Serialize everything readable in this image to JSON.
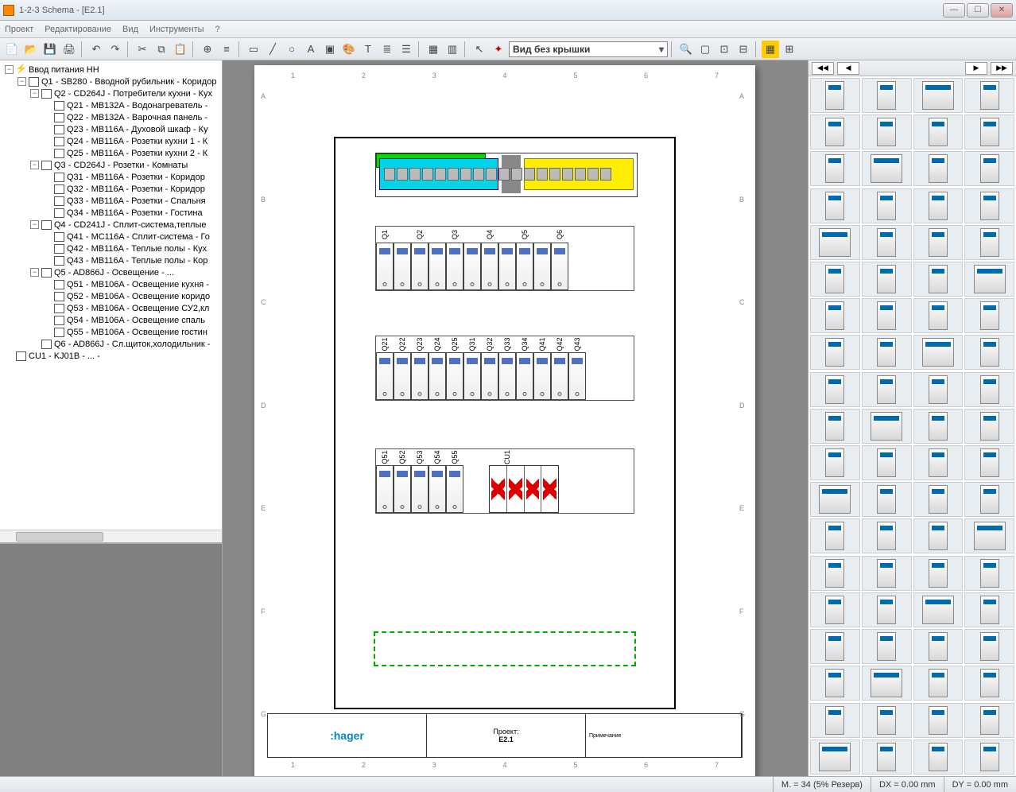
{
  "window": {
    "title": "1-2-3 Schema - [E2.1]"
  },
  "menu": {
    "items": [
      "Проект",
      "Редактирование",
      "Вид",
      "Инструменты",
      "?"
    ]
  },
  "toolbar": {
    "view_combo": "Вид без крышки"
  },
  "tree": {
    "root": "Ввод питания НН",
    "nodes": [
      {
        "indent": 0,
        "exp": "-",
        "ico": "bolt",
        "label": "Ввод питания НН"
      },
      {
        "indent": 1,
        "exp": "-",
        "ico": "box",
        "label": "Q1 - SB280 - Вводной рубильник - Коридор"
      },
      {
        "indent": 2,
        "exp": "-",
        "ico": "box",
        "label": "Q2 - CD264J - Потребители кухни - Кух"
      },
      {
        "indent": 3,
        "exp": "",
        "ico": "box",
        "label": "Q21 - MB132A - Водонагреватель - "
      },
      {
        "indent": 3,
        "exp": "",
        "ico": "box",
        "label": "Q22 - MB132A - Варочная панель - "
      },
      {
        "indent": 3,
        "exp": "",
        "ico": "box",
        "label": "Q23 - MB116A - Духовой шкаф - Ку"
      },
      {
        "indent": 3,
        "exp": "",
        "ico": "box",
        "label": "Q24 - MB116A - Розетки кухни 1 - К"
      },
      {
        "indent": 3,
        "exp": "",
        "ico": "box",
        "label": "Q25 - MB116A - Розетки кухни 2 - К"
      },
      {
        "indent": 2,
        "exp": "-",
        "ico": "box",
        "label": "Q3 - CD264J - Розетки - Комнаты"
      },
      {
        "indent": 3,
        "exp": "",
        "ico": "box",
        "label": "Q31 - MB116A - Розетки - Коридор"
      },
      {
        "indent": 3,
        "exp": "",
        "ico": "box",
        "label": "Q32 - MB116A - Розетки - Коридор"
      },
      {
        "indent": 3,
        "exp": "",
        "ico": "box",
        "label": "Q33 - MB116A - Розетки - Спальня"
      },
      {
        "indent": 3,
        "exp": "",
        "ico": "box",
        "label": "Q34 - MB116A - Розетки - Гостина"
      },
      {
        "indent": 2,
        "exp": "-",
        "ico": "box",
        "label": "Q4 - CD241J - Сплит-система,теплые "
      },
      {
        "indent": 3,
        "exp": "",
        "ico": "box",
        "label": "Q41 - MC116A - Сплит-система - Го"
      },
      {
        "indent": 3,
        "exp": "",
        "ico": "box",
        "label": "Q42 - MB116A - Теплые полы - Кух"
      },
      {
        "indent": 3,
        "exp": "",
        "ico": "box",
        "label": "Q43 - MB116A - Теплые полы - Кор"
      },
      {
        "indent": 2,
        "exp": "-",
        "ico": "box",
        "label": "Q5 - AD866J - Освещение - ..."
      },
      {
        "indent": 3,
        "exp": "",
        "ico": "box",
        "label": "Q51 - MB106A - Освещение кухня - "
      },
      {
        "indent": 3,
        "exp": "",
        "ico": "box",
        "label": "Q52 - MB106A - Освещение коридо"
      },
      {
        "indent": 3,
        "exp": "",
        "ico": "box",
        "label": "Q53 - MB106A - Освещение СУ2,кл"
      },
      {
        "indent": 3,
        "exp": "",
        "ico": "box",
        "label": "Q54 - MB106A - Освещение спаль"
      },
      {
        "indent": 3,
        "exp": "",
        "ico": "box",
        "label": "Q55 - MB106A - Освещение гостин"
      },
      {
        "indent": 2,
        "exp": "",
        "ico": "box",
        "label": "Q6 - AD866J - Сл.щиток,холодильник - "
      },
      {
        "indent": 0,
        "exp": "",
        "ico": "box",
        "label": "CU1 - KJ01B - ... -"
      }
    ]
  },
  "panel": {
    "ruler_h": [
      "1",
      "2",
      "3",
      "4",
      "5",
      "6",
      "7"
    ],
    "ruler_v": [
      "A",
      "B",
      "C",
      "D",
      "E",
      "F",
      "G"
    ],
    "row1_labels": [
      "Q1",
      "",
      "Q2",
      "",
      "Q3",
      "",
      "Q4",
      "",
      "Q5",
      "",
      "Q6"
    ],
    "row2_labels": [
      "Q21",
      "Q22",
      "Q23",
      "Q24",
      "Q25",
      "Q31",
      "Q32",
      "Q33",
      "Q34",
      "Q41",
      "Q42",
      "Q43"
    ],
    "row3_labels": [
      "Q51",
      "Q52",
      "Q53",
      "Q54",
      "Q55"
    ],
    "cu_label": "CU1",
    "titleblock": {
      "logo": ":hager",
      "proj_label": "Проект:",
      "proj_value": "E2.1",
      "note_label": "Примечание"
    }
  },
  "status": {
    "m": "M. = 34 (5% Резерв)",
    "dx": "DX = 0.00 mm",
    "dy": "DY = 0.00 mm"
  },
  "colors": {
    "bus_cyan": "#00d4e8",
    "bus_yellow": "#ffee00",
    "bus_green": "#00dd00",
    "surge_red": "#d00000",
    "dashed_green": "#00aa00"
  }
}
